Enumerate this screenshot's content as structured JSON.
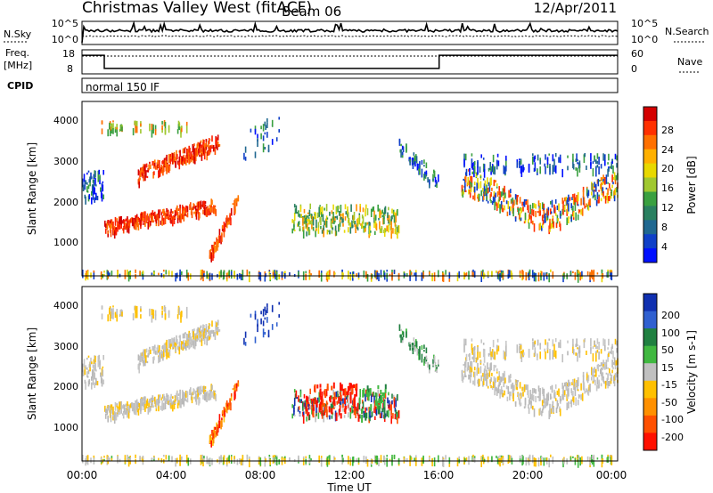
{
  "header": {
    "station": "Christmas Valley West (fitACF)",
    "beam": "Beam 06",
    "date": "12/Apr/2011"
  },
  "noise_panel": {
    "left_label": "N.Sky",
    "left_ticks": [
      "10^5",
      "10^0"
    ],
    "right_ticks": [
      "10^5",
      "10^0"
    ],
    "right_label": "N.Search"
  },
  "freq_panel": {
    "left_label_1": "Freq.",
    "left_label_2": "[MHz]",
    "left_ticks": [
      "18",
      "8"
    ],
    "right_ticks": [
      "60",
      "0"
    ],
    "right_label": "Nave"
  },
  "cpid_panel": {
    "label": "CPID",
    "mode_text": "normal 150 IF"
  },
  "range_axis": {
    "label": "Slant Range [km]",
    "ticks": [
      "4000",
      "3000",
      "2000",
      "1000"
    ]
  },
  "time_axis": {
    "label": "Time UT",
    "ticks": [
      "00:00",
      "04:00",
      "08:00",
      "12:00",
      "16:00",
      "20:00",
      "00:00"
    ]
  },
  "power_scale": {
    "label": "Power [dB]",
    "ticks": [
      "28",
      "24",
      "20",
      "16",
      "12",
      "8",
      "4"
    ],
    "colors": [
      "#d40000",
      "#ff3000",
      "#ff7000",
      "#ffb000",
      "#e8d800",
      "#a0c830",
      "#3aa040",
      "#2a8060",
      "#206890",
      "#1040c8",
      "#0010ff"
    ]
  },
  "velocity_scale": {
    "label": "Velocity [m s-1]",
    "ticks": [
      "200",
      "100",
      "50",
      "15",
      "-15",
      "-50",
      "-100",
      "-200"
    ],
    "colors": [
      "#1030b0",
      "#3060d0",
      "#208040",
      "#40b840",
      "#c0c0c0",
      "#ffc000",
      "#ff9000",
      "#ff5000",
      "#ff1000"
    ]
  },
  "chart_data": {
    "type": "heatmap",
    "title": "Christmas Valley West (fitACF) Beam 06 12/Apr/2011",
    "xlabel": "Time UT",
    "ylabel": "Slant Range [km]",
    "xlim": [
      "00:00",
      "24:00"
    ],
    "ylim": [
      180,
      4500
    ],
    "panels": [
      {
        "name": "Power [dB]",
        "range": [
          3,
          30
        ]
      },
      {
        "name": "Velocity [m s-1]",
        "range": [
          -200,
          200
        ]
      }
    ],
    "frequency_MHz": [
      {
        "from": "00:00",
        "to": "01:00",
        "value": 16.5
      },
      {
        "from": "01:00",
        "to": "16:00",
        "value": 10.5
      },
      {
        "from": "16:00",
        "to": "24:00",
        "value": 16.5
      }
    ]
  }
}
